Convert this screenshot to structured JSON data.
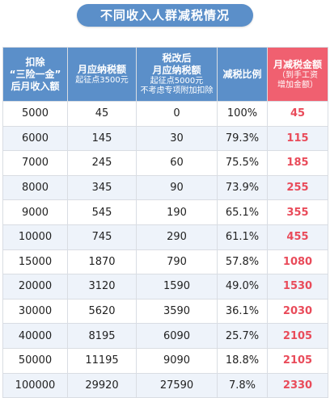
{
  "title": "不同收入人群减税情况",
  "headers": [
    {
      "main": "扣除\n“三险一金”\n后月收入额",
      "sub": ""
    },
    {
      "main": "月应纳税额",
      "sub": "起征点3500元"
    },
    {
      "main": "税改后\n月应纳税额",
      "sub": "起征点5000元\n不考虑专项附加扣除"
    },
    {
      "main": "减税比例",
      "sub": ""
    },
    {
      "main": "月减税金额",
      "sub": "（到手工资\n增加金额）"
    }
  ],
  "rows": [
    [
      "5000",
      "45",
      "0",
      "100%",
      "45"
    ],
    [
      "6000",
      "145",
      "30",
      "79.3%",
      "115"
    ],
    [
      "7000",
      "245",
      "60",
      "75.5%",
      "185"
    ],
    [
      "8000",
      "345",
      "90",
      "73.9%",
      "255"
    ],
    [
      "9000",
      "545",
      "190",
      "65.1%",
      "355"
    ],
    [
      "10000",
      "745",
      "290",
      "61.1%",
      "455"
    ],
    [
      "15000",
      "1870",
      "790",
      "57.8%",
      "1080"
    ],
    [
      "20000",
      "3120",
      "1590",
      "49.0%",
      "1530"
    ],
    [
      "30000",
      "5620",
      "3590",
      "36.1%",
      "2030"
    ],
    [
      "40000",
      "8195",
      "6090",
      "25.7%",
      "2105"
    ],
    [
      "50000",
      "11195",
      "9090",
      "18.8%",
      "2105"
    ],
    [
      "100000",
      "29920",
      "27590",
      "7.8%",
      "2330"
    ]
  ],
  "colors": {
    "header_blue": "#5b8fc9",
    "header_red": "#f06070",
    "value_red": "#e94b5a",
    "stripe": "#eef3fa"
  }
}
